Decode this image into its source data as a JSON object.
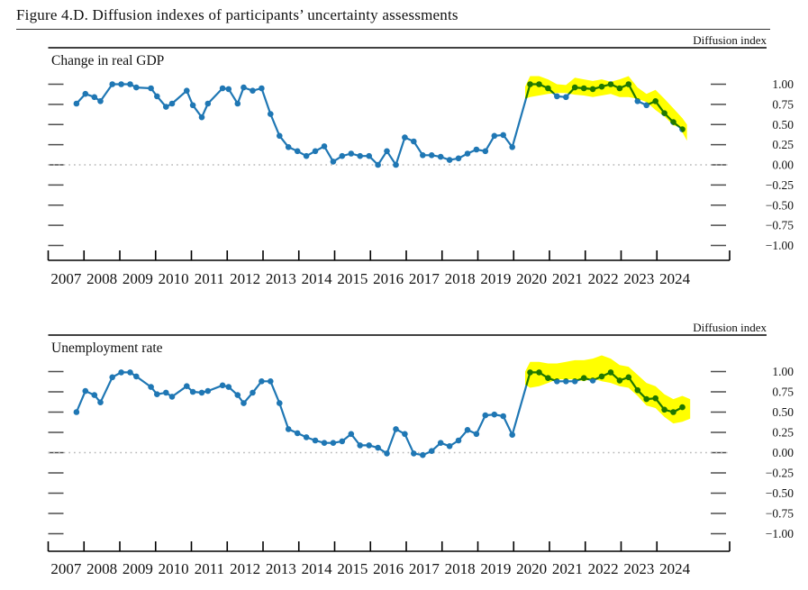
{
  "figure": {
    "title": "Figure 4.D. Diffusion indexes of participants’ uncertainty assessments"
  },
  "colors": {
    "series_line": "#1f77b4",
    "highlight_band": "#ffff00",
    "zero_line": "#b8b8b8",
    "axis": "#000000",
    "tick_dash": "#4d4d4d",
    "text": "#111111"
  },
  "chart_data": [
    {
      "type": "line",
      "title": "Change in real GDP",
      "right_axis_header": "Diffusion index",
      "ylim": [
        -1.0,
        1.0
      ],
      "x_range": [
        2007,
        2025
      ],
      "grid": false,
      "legend": false,
      "zero_line_dotted": true,
      "y_ticks": [
        1.0,
        0.75,
        0.5,
        0.25,
        0.0,
        -0.25,
        -0.5,
        -0.75,
        -1.0
      ],
      "y_tick_labels": [
        "1.00",
        "0.75",
        "0.50",
        "0.25",
        "0.00",
        "−0.25",
        "−0.50",
        "−0.75",
        "−1.00"
      ],
      "x_year_labels": [
        "2007",
        "2008",
        "2009",
        "2010",
        "2011",
        "2012",
        "2013",
        "2014",
        "2015",
        "2016",
        "2017",
        "2018",
        "2019",
        "2020",
        "2021",
        "2022",
        "2023",
        "2024"
      ],
      "points": [
        [
          2007.79,
          0.76
        ],
        [
          2008.04,
          0.88
        ],
        [
          2008.29,
          0.84
        ],
        [
          2008.46,
          0.79
        ],
        [
          2008.79,
          1.0
        ],
        [
          2009.04,
          1.0
        ],
        [
          2009.29,
          1.0
        ],
        [
          2009.46,
          0.96
        ],
        [
          2009.87,
          0.95
        ],
        [
          2010.04,
          0.85
        ],
        [
          2010.29,
          0.72
        ],
        [
          2010.46,
          0.76
        ],
        [
          2010.87,
          0.92
        ],
        [
          2011.04,
          0.74
        ],
        [
          2011.29,
          0.59
        ],
        [
          2011.46,
          0.76
        ],
        [
          2011.87,
          0.95
        ],
        [
          2012.04,
          0.94
        ],
        [
          2012.29,
          0.76
        ],
        [
          2012.46,
          0.96
        ],
        [
          2012.71,
          0.92
        ],
        [
          2012.96,
          0.95
        ],
        [
          2013.21,
          0.63
        ],
        [
          2013.46,
          0.36
        ],
        [
          2013.71,
          0.22
        ],
        [
          2013.96,
          0.17
        ],
        [
          2014.21,
          0.11
        ],
        [
          2014.46,
          0.17
        ],
        [
          2014.71,
          0.23
        ],
        [
          2014.96,
          0.04
        ],
        [
          2015.21,
          0.11
        ],
        [
          2015.46,
          0.14
        ],
        [
          2015.71,
          0.11
        ],
        [
          2015.96,
          0.11
        ],
        [
          2016.21,
          0.0
        ],
        [
          2016.46,
          0.17
        ],
        [
          2016.71,
          0.0
        ],
        [
          2016.96,
          0.34
        ],
        [
          2017.21,
          0.29
        ],
        [
          2017.46,
          0.12
        ],
        [
          2017.71,
          0.12
        ],
        [
          2017.96,
          0.1
        ],
        [
          2018.21,
          0.06
        ],
        [
          2018.46,
          0.08
        ],
        [
          2018.71,
          0.14
        ],
        [
          2018.96,
          0.19
        ],
        [
          2019.21,
          0.17
        ],
        [
          2019.46,
          0.36
        ],
        [
          2019.71,
          0.37
        ],
        [
          2019.96,
          0.22
        ],
        [
          2020.46,
          1.0
        ],
        [
          2020.71,
          1.0
        ],
        [
          2020.96,
          0.95
        ],
        [
          2021.21,
          0.85
        ],
        [
          2021.46,
          0.84
        ],
        [
          2021.71,
          0.96
        ],
        [
          2021.96,
          0.95
        ],
        [
          2022.21,
          0.94
        ],
        [
          2022.46,
          0.97
        ],
        [
          2022.71,
          1.0
        ],
        [
          2022.96,
          0.95
        ],
        [
          2023.21,
          1.0
        ],
        [
          2023.46,
          0.79
        ],
        [
          2023.71,
          0.74
        ],
        [
          2023.96,
          0.79
        ],
        [
          2024.21,
          0.64
        ],
        [
          2024.46,
          0.53
        ],
        [
          2024.71,
          0.44
        ]
      ],
      "highlight_band": {
        "upper": [
          [
            2020.32,
            0.97
          ],
          [
            2020.46,
            1.1
          ],
          [
            2020.71,
            1.1
          ],
          [
            2020.96,
            1.06
          ],
          [
            2021.21,
            1.0
          ],
          [
            2021.46,
            0.99
          ],
          [
            2021.71,
            1.08
          ],
          [
            2021.96,
            1.06
          ],
          [
            2022.21,
            1.04
          ],
          [
            2022.46,
            1.06
          ],
          [
            2022.71,
            1.03
          ],
          [
            2022.96,
            1.06
          ],
          [
            2023.21,
            1.1
          ],
          [
            2023.46,
            0.96
          ],
          [
            2023.71,
            0.88
          ],
          [
            2023.96,
            0.93
          ],
          [
            2024.21,
            0.82
          ],
          [
            2024.46,
            0.7
          ],
          [
            2024.71,
            0.58
          ],
          [
            2024.84,
            0.5
          ]
        ],
        "lower": [
          [
            2020.32,
            0.82
          ],
          [
            2020.46,
            0.84
          ],
          [
            2020.71,
            0.86
          ],
          [
            2020.96,
            0.88
          ],
          [
            2021.21,
            0.89
          ],
          [
            2021.46,
            0.89
          ],
          [
            2021.71,
            0.87
          ],
          [
            2021.96,
            0.86
          ],
          [
            2022.21,
            0.84
          ],
          [
            2022.46,
            0.86
          ],
          [
            2022.71,
            0.88
          ],
          [
            2022.96,
            0.84
          ],
          [
            2023.21,
            0.84
          ],
          [
            2023.46,
            0.82
          ],
          [
            2023.71,
            0.78
          ],
          [
            2023.96,
            0.68
          ],
          [
            2024.21,
            0.6
          ],
          [
            2024.46,
            0.49
          ],
          [
            2024.62,
            0.47
          ],
          [
            2024.74,
            0.38
          ],
          [
            2024.84,
            0.3
          ]
        ]
      }
    },
    {
      "type": "line",
      "title": "Unemployment rate",
      "right_axis_header": "Diffusion index",
      "ylim": [
        -1.0,
        1.0
      ],
      "x_range": [
        2007,
        2025
      ],
      "grid": false,
      "legend": false,
      "zero_line_dotted": true,
      "y_ticks": [
        1.0,
        0.75,
        0.5,
        0.25,
        0.0,
        -0.25,
        -0.5,
        -0.75,
        -1.0
      ],
      "y_tick_labels": [
        "1.00",
        "0.75",
        "0.50",
        "0.25",
        "0.00",
        "−0.25",
        "−0.50",
        "−0.75",
        "−1.00"
      ],
      "x_year_labels": [
        "2007",
        "2008",
        "2009",
        "2010",
        "2011",
        "2012",
        "2013",
        "2014",
        "2015",
        "2016",
        "2017",
        "2018",
        "2019",
        "2020",
        "2021",
        "2022",
        "2023",
        "2024"
      ],
      "points": [
        [
          2007.79,
          0.5
        ],
        [
          2008.04,
          0.76
        ],
        [
          2008.29,
          0.71
        ],
        [
          2008.46,
          0.62
        ],
        [
          2008.79,
          0.93
        ],
        [
          2009.04,
          0.99
        ],
        [
          2009.29,
          0.99
        ],
        [
          2009.46,
          0.94
        ],
        [
          2009.87,
          0.81
        ],
        [
          2010.04,
          0.72
        ],
        [
          2010.29,
          0.74
        ],
        [
          2010.46,
          0.69
        ],
        [
          2010.87,
          0.82
        ],
        [
          2011.04,
          0.75
        ],
        [
          2011.29,
          0.74
        ],
        [
          2011.46,
          0.76
        ],
        [
          2011.87,
          0.83
        ],
        [
          2012.04,
          0.81
        ],
        [
          2012.29,
          0.71
        ],
        [
          2012.46,
          0.61
        ],
        [
          2012.71,
          0.74
        ],
        [
          2012.96,
          0.88
        ],
        [
          2013.21,
          0.88
        ],
        [
          2013.46,
          0.61
        ],
        [
          2013.71,
          0.29
        ],
        [
          2013.96,
          0.24
        ],
        [
          2014.21,
          0.19
        ],
        [
          2014.46,
          0.15
        ],
        [
          2014.71,
          0.12
        ],
        [
          2014.96,
          0.12
        ],
        [
          2015.21,
          0.14
        ],
        [
          2015.46,
          0.23
        ],
        [
          2015.71,
          0.09
        ],
        [
          2015.96,
          0.09
        ],
        [
          2016.21,
          0.06
        ],
        [
          2016.46,
          -0.01
        ],
        [
          2016.71,
          0.29
        ],
        [
          2016.96,
          0.23
        ],
        [
          2017.21,
          -0.01
        ],
        [
          2017.46,
          -0.03
        ],
        [
          2017.71,
          0.02
        ],
        [
          2017.96,
          0.12
        ],
        [
          2018.21,
          0.08
        ],
        [
          2018.46,
          0.15
        ],
        [
          2018.71,
          0.28
        ],
        [
          2018.96,
          0.23
        ],
        [
          2019.21,
          0.46
        ],
        [
          2019.46,
          0.47
        ],
        [
          2019.71,
          0.45
        ],
        [
          2019.96,
          0.22
        ],
        [
          2020.46,
          0.99
        ],
        [
          2020.71,
          0.99
        ],
        [
          2020.96,
          0.92
        ],
        [
          2021.21,
          0.88
        ],
        [
          2021.46,
          0.88
        ],
        [
          2021.71,
          0.88
        ],
        [
          2021.96,
          0.92
        ],
        [
          2022.21,
          0.89
        ],
        [
          2022.46,
          0.94
        ],
        [
          2022.71,
          0.99
        ],
        [
          2022.96,
          0.89
        ],
        [
          2023.21,
          0.93
        ],
        [
          2023.46,
          0.77
        ],
        [
          2023.71,
          0.66
        ],
        [
          2023.96,
          0.67
        ],
        [
          2024.21,
          0.53
        ],
        [
          2024.46,
          0.5
        ],
        [
          2024.71,
          0.56
        ]
      ],
      "highlight_band": {
        "upper": [
          [
            2020.32,
            1.0
          ],
          [
            2020.46,
            1.12
          ],
          [
            2020.71,
            1.12
          ],
          [
            2020.96,
            1.1
          ],
          [
            2021.21,
            1.1
          ],
          [
            2021.46,
            1.12
          ],
          [
            2021.71,
            1.14
          ],
          [
            2021.96,
            1.14
          ],
          [
            2022.21,
            1.16
          ],
          [
            2022.46,
            1.2
          ],
          [
            2022.71,
            1.16
          ],
          [
            2022.96,
            1.08
          ],
          [
            2023.21,
            1.06
          ],
          [
            2023.46,
            0.96
          ],
          [
            2023.71,
            0.86
          ],
          [
            2023.96,
            0.82
          ],
          [
            2024.21,
            0.72
          ],
          [
            2024.46,
            0.66
          ],
          [
            2024.71,
            0.7
          ],
          [
            2024.93,
            0.66
          ]
        ],
        "lower": [
          [
            2020.32,
            0.84
          ],
          [
            2020.46,
            0.8
          ],
          [
            2020.71,
            0.82
          ],
          [
            2020.96,
            0.86
          ],
          [
            2021.21,
            0.905
          ],
          [
            2021.46,
            0.905
          ],
          [
            2021.71,
            0.905
          ],
          [
            2021.96,
            0.88
          ],
          [
            2022.21,
            0.915
          ],
          [
            2022.46,
            0.88
          ],
          [
            2022.71,
            0.86
          ],
          [
            2022.96,
            0.82
          ],
          [
            2023.21,
            0.8
          ],
          [
            2023.46,
            0.7
          ],
          [
            2023.71,
            0.58
          ],
          [
            2023.96,
            0.55
          ],
          [
            2024.21,
            0.44
          ],
          [
            2024.46,
            0.36
          ],
          [
            2024.71,
            0.38
          ],
          [
            2024.93,
            0.42
          ]
        ]
      }
    }
  ]
}
